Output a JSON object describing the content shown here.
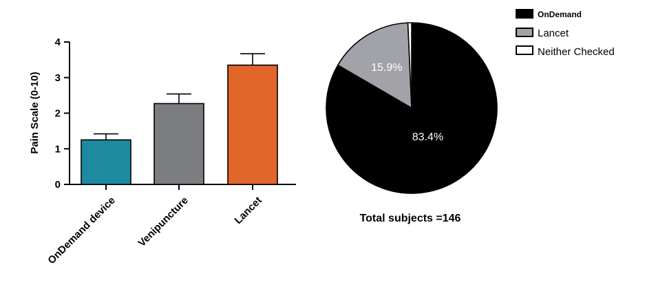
{
  "chart_data": [
    {
      "type": "bar",
      "ylabel": "Pain Scale (0-10)",
      "categories": [
        "OnDemand device",
        "Venipuncture",
        "Lancet"
      ],
      "values": [
        1.25,
        2.27,
        3.35
      ],
      "error_bars": [
        0.17,
        0.27,
        0.32
      ],
      "colors": [
        "#1e8aa0",
        "#7b7d80",
        "#e0662a"
      ],
      "ylim": [
        0,
        4
      ],
      "yticks": [
        "0",
        "1",
        "2",
        "3",
        "4"
      ],
      "grid": false,
      "legend": "none"
    },
    {
      "type": "pie",
      "categories": [
        "OnDemand",
        "Lancet",
        "Neither Checked"
      ],
      "values": [
        83.4,
        15.9,
        0.7
      ],
      "slice_labels": [
        "83.4%",
        "15.9%",
        ""
      ],
      "colors": [
        "#000000",
        "#a2a3a9",
        "#ffffff"
      ],
      "caption": "Total subjects =146",
      "legend": "top-right"
    }
  ]
}
